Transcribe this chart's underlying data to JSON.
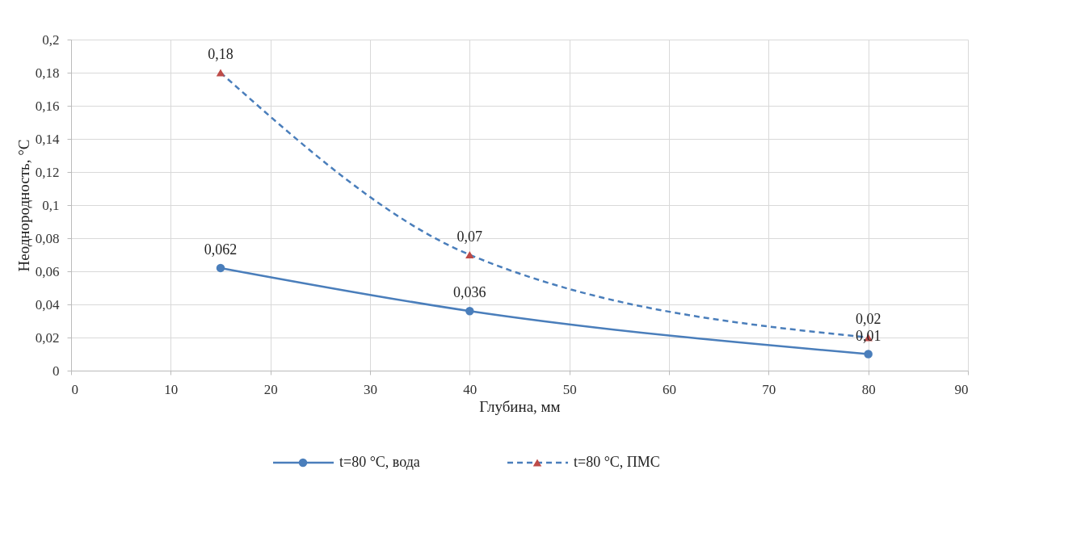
{
  "chart_data": {
    "type": "line",
    "xlabel": "Глубина, мм",
    "ylabel": "Неоднородность, °C",
    "x": [
      15,
      40,
      80
    ],
    "series": [
      {
        "name": "t=80 °C, вода",
        "color": "#4a7ebb",
        "marker": "circle",
        "line_style": "solid",
        "values": [
          0.062,
          0.036,
          0.01
        ],
        "value_labels": [
          "0,062",
          "0,036",
          "0,01"
        ]
      },
      {
        "name": "t=80 °C, ПМС",
        "color": "#4a7ebb",
        "colors": [
          "#be4b48",
          "#be4b48",
          "#be4b48"
        ],
        "marker": "triangle",
        "line_style": "dashed",
        "values": [
          0.18,
          0.07,
          0.02
        ],
        "value_labels": [
          "0,18",
          "0,07",
          "0,02"
        ]
      }
    ],
    "xlim": [
      0,
      90
    ],
    "xticks": [
      0,
      10,
      20,
      30,
      40,
      50,
      60,
      70,
      80,
      90
    ],
    "ylim": [
      0,
      0.2
    ],
    "yticks": [
      0,
      {
        "value": 0.02,
        "label": "0,02"
      },
      {
        "value": 0.04,
        "label": "0,04"
      },
      {
        "value": 0.06,
        "label": "0,06"
      },
      {
        "value": 0.08,
        "label": "0,08"
      },
      {
        "value": 0.1,
        "label": "0,1"
      },
      {
        "value": 0.12,
        "label": "0,12"
      },
      {
        "value": 0.14,
        "label": "0,14"
      },
      {
        "value": 0.16,
        "label": "0,16"
      },
      {
        "value": 0.18,
        "label": "0,18"
      },
      {
        "value": 0.2,
        "label": "0,2"
      }
    ],
    "grid": true,
    "legend": "bottom"
  }
}
